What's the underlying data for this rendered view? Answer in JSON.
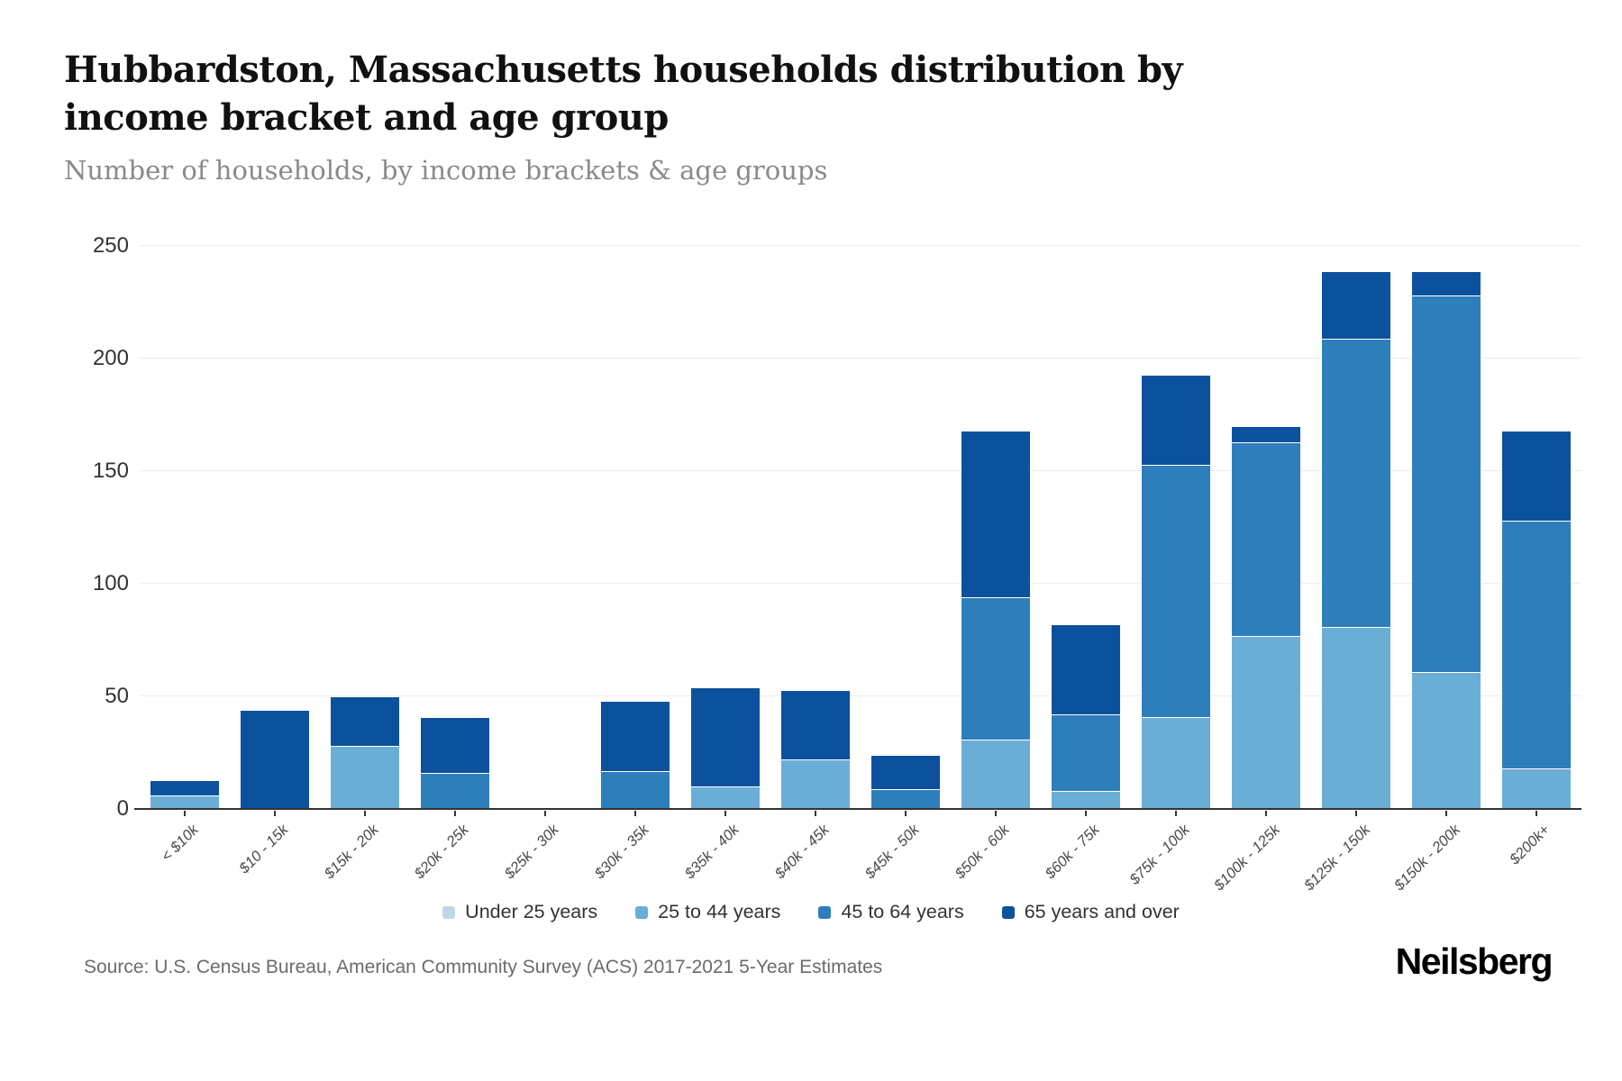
{
  "header": {
    "title": "Hubbardston, Massachusetts households distribution by income bracket and age group",
    "subtitle": "Number of households, by income brackets & age groups"
  },
  "chart_data": {
    "type": "bar",
    "stacked": true,
    "title": "Hubbardston, Massachusetts households distribution by income bracket and age group",
    "subtitle": "Number of households, by income brackets & age groups",
    "xlabel": "",
    "ylabel": "",
    "ylim": [
      0,
      250
    ],
    "yticks": [
      0,
      50,
      100,
      150,
      200,
      250
    ],
    "grid": true,
    "legend_position": "bottom",
    "categories": [
      "< $10k",
      "$10 - 15k",
      "$15k - 20k",
      "$20k - 25k",
      "$25k - 30k",
      "$30k - 35k",
      "$35k - 40k",
      "$40k - 45k",
      "$45k - 50k",
      "$50k - 60k",
      "$60k - 75k",
      "$75k - 100k",
      "$100k - 125k",
      "$125k - 150k",
      "$150k - 200k",
      "$200k+"
    ],
    "series": [
      {
        "name": "Under 25 years",
        "color": "#bdd7e8",
        "values": [
          0,
          0,
          0,
          0,
          0,
          0,
          0,
          0,
          0,
          0,
          0,
          0,
          0,
          0,
          0,
          0
        ]
      },
      {
        "name": "25 to 44 years",
        "color": "#6aaed6",
        "values": [
          6,
          0,
          28,
          0,
          0,
          0,
          10,
          22,
          0,
          31,
          8,
          41,
          77,
          81,
          61,
          18
        ]
      },
      {
        "name": "45 to 64 years",
        "color": "#2e7ebc",
        "values": [
          0,
          0,
          0,
          16,
          0,
          17,
          0,
          0,
          9,
          63,
          34,
          112,
          86,
          128,
          167,
          110
        ]
      },
      {
        "name": "65 years and over",
        "color": "#0b519e",
        "values": [
          7,
          44,
          22,
          25,
          0,
          31,
          44,
          31,
          15,
          74,
          40,
          40,
          7,
          30,
          11,
          40
        ]
      }
    ],
    "totals": [
      13,
      44,
      50,
      41,
      0,
      48,
      54,
      53,
      24,
      168,
      82,
      193,
      170,
      239,
      239,
      168
    ]
  },
  "footer": {
    "source": "Source: U.S. Census Bureau, American Community Survey (ACS) 2017-2021 5-Year Estimates",
    "brand": "Neilsberg"
  }
}
